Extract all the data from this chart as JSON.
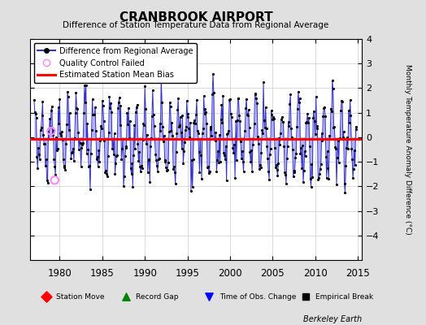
{
  "title": "CRANBROOK AIRPORT",
  "subtitle": "Difference of Station Temperature Data from Regional Average",
  "ylabel": "Monthly Temperature Anomaly Difference (°C)",
  "xlabel_years": [
    1980,
    1985,
    1990,
    1995,
    2000,
    2005,
    2010,
    2015
  ],
  "xmin": 1976.5,
  "xmax": 2015.5,
  "ymin": -5,
  "ymax": 4,
  "yticks": [
    -4,
    -3,
    -2,
    -1,
    0,
    1,
    2,
    3,
    4
  ],
  "bias_level": -0.08,
  "line_color": "#3333cc",
  "line_fill_color": "#9999ee",
  "marker_color": "#000000",
  "bias_color": "#ff0000",
  "qc_color": "#ff88ff",
  "background_color": "#e0e0e0",
  "plot_background": "#ffffff",
  "watermark": "Berkeley Earth",
  "seed": 42
}
